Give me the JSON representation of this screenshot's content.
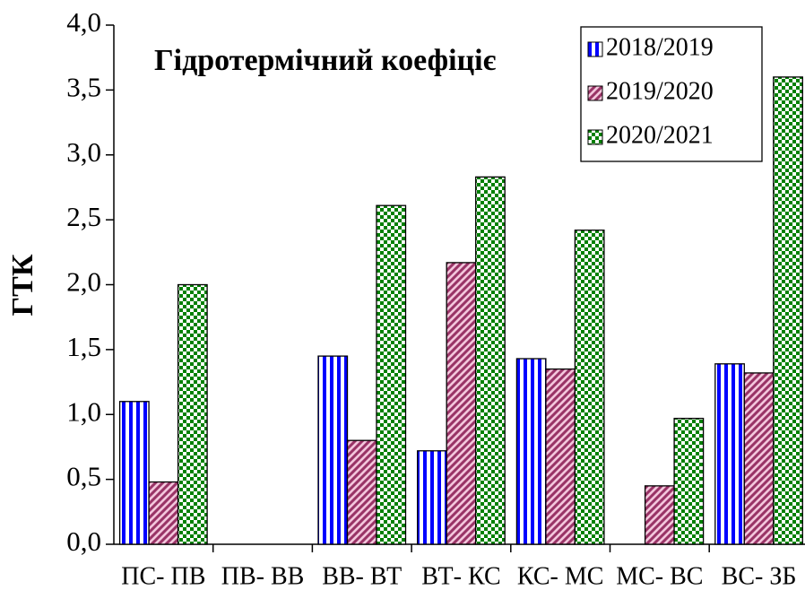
{
  "chart_data": {
    "type": "bar",
    "title": "Гідротермічний коефіціє",
    "y_label": "ГТК",
    "categories": [
      "ПС- ПВ",
      "ПВ- ВВ",
      "ВВ- ВТ",
      "ВТ- КС",
      "КС- МС",
      "МС- ВС",
      "ВС- ЗБ"
    ],
    "series": [
      {
        "name": "2018/2019",
        "color": "#0000ff",
        "pattern": "vertical",
        "values": [
          1.1,
          null,
          1.45,
          0.72,
          1.43,
          null,
          1.39
        ]
      },
      {
        "name": "2019/2020",
        "color": "#993366",
        "pattern": "diagonal",
        "values": [
          0.48,
          null,
          0.8,
          2.17,
          1.35,
          0.45,
          1.32
        ]
      },
      {
        "name": "2020/2021",
        "color": "#008000",
        "pattern": "checker",
        "values": [
          2.0,
          null,
          2.61,
          2.83,
          2.42,
          0.97,
          3.6
        ]
      }
    ],
    "ylim": [
      0,
      4
    ],
    "yticks": [
      {
        "value": 0,
        "label": "0,0"
      },
      {
        "value": 0.5,
        "label": "0,5"
      },
      {
        "value": 1,
        "label": "1,0"
      },
      {
        "value": 1.5,
        "label": "1,5"
      },
      {
        "value": 2,
        "label": "2,0"
      },
      {
        "value": 2.5,
        "label": "2,5"
      },
      {
        "value": 3,
        "label": "3,0"
      },
      {
        "value": 3.5,
        "label": "3,5"
      },
      {
        "value": 4,
        "label": "4,0"
      }
    ],
    "grid": false,
    "legend": "upper right"
  }
}
